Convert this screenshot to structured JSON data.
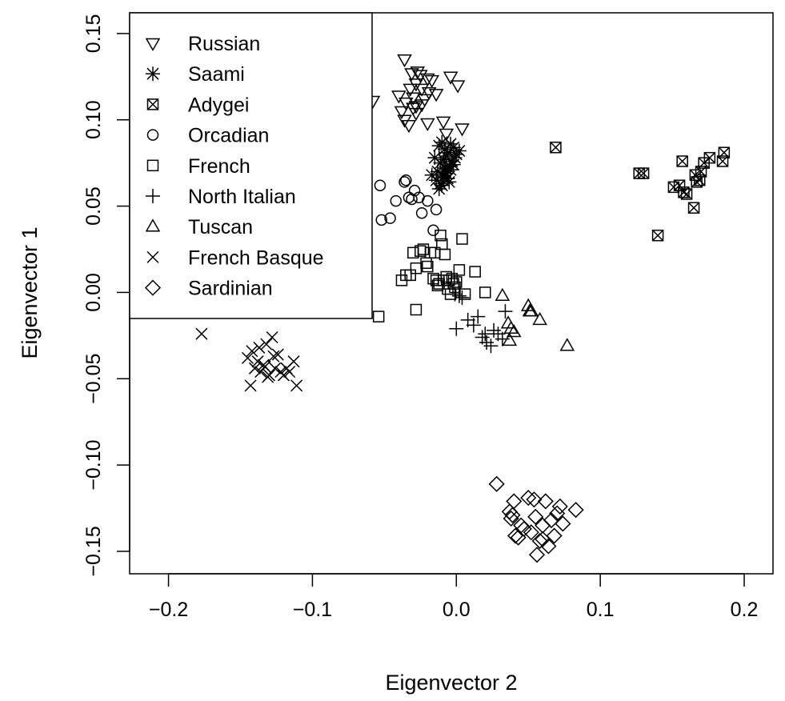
{
  "chart_data": {
    "type": "scatter",
    "title": "",
    "xlabel": "Eigenvector 2",
    "ylabel": "Eigenvector 1",
    "xlim": [
      -0.227,
      0.22
    ],
    "ylim": [
      -0.163,
      0.162
    ],
    "xticks": [
      -0.2,
      -0.1,
      0.0,
      0.1,
      0.2
    ],
    "xtick_labels": [
      "−0.2",
      "−0.1",
      "0.0",
      "0.1",
      "0.2"
    ],
    "yticks": [
      -0.15,
      -0.1,
      -0.05,
      0.0,
      0.05,
      0.1,
      0.15
    ],
    "ytick_labels": [
      "−0.15",
      "−0.10",
      "−0.05",
      "0.00",
      "0.05",
      "0.10",
      "0.15"
    ],
    "grid": false,
    "legend_position": "top-left",
    "series": [
      {
        "name": "Russian",
        "marker": "triangle-down",
        "x": [
          -0.036,
          -0.058,
          -0.04,
          -0.035,
          -0.038,
          -0.03,
          -0.028,
          -0.024,
          -0.022,
          -0.019,
          -0.032,
          -0.028,
          -0.02,
          -0.025,
          -0.031,
          -0.027,
          -0.017,
          -0.024,
          -0.033,
          -0.036,
          -0.02,
          -0.028,
          -0.03,
          -0.009,
          -0.004,
          0.001,
          0.004,
          -0.007,
          -0.014
        ],
        "y": [
          0.135,
          0.111,
          0.114,
          0.11,
          0.105,
          0.107,
          0.104,
          0.109,
          0.112,
          0.116,
          0.118,
          0.121,
          0.124,
          0.126,
          0.127,
          0.128,
          0.123,
          0.118,
          0.097,
          0.1,
          0.098,
          0.108,
          0.113,
          0.099,
          0.125,
          0.12,
          0.095,
          0.092,
          0.115
        ]
      },
      {
        "name": "Saami",
        "marker": "asterisk",
        "x": [
          -0.015,
          -0.012,
          -0.01,
          -0.008,
          -0.006,
          -0.004,
          -0.002,
          0.0,
          0.002,
          -0.011,
          -0.009,
          -0.007,
          -0.005,
          -0.003,
          -0.001,
          -0.013,
          -0.01,
          -0.008,
          -0.006,
          -0.004,
          -0.002,
          -0.017,
          -0.014,
          -0.011,
          -0.009,
          -0.007,
          -0.005,
          -0.012,
          -0.01,
          -0.008
        ],
        "y": [
          0.078,
          0.085,
          0.087,
          0.083,
          0.081,
          0.086,
          0.084,
          0.08,
          0.082,
          0.075,
          0.077,
          0.079,
          0.073,
          0.076,
          0.078,
          0.07,
          0.068,
          0.072,
          0.066,
          0.071,
          0.074,
          0.068,
          0.065,
          0.063,
          0.067,
          0.069,
          0.064,
          0.06,
          0.062,
          0.07
        ]
      },
      {
        "name": "Adygei",
        "marker": "boxed-x",
        "x": [
          0.069,
          0.127,
          0.13,
          0.14,
          0.151,
          0.155,
          0.157,
          0.158,
          0.16,
          0.165,
          0.166,
          0.167,
          0.169,
          0.17,
          0.172,
          0.176,
          0.185,
          0.186
        ],
        "y": [
          0.084,
          0.069,
          0.069,
          0.033,
          0.061,
          0.062,
          0.076,
          0.058,
          0.057,
          0.049,
          0.068,
          0.064,
          0.065,
          0.07,
          0.075,
          0.078,
          0.076,
          0.081
        ]
      },
      {
        "name": "Orcadian",
        "marker": "circle",
        "x": [
          -0.053,
          -0.046,
          -0.042,
          -0.036,
          -0.033,
          -0.031,
          -0.029,
          -0.026,
          -0.024,
          -0.02,
          -0.016,
          -0.014,
          -0.035,
          -0.052
        ],
        "y": [
          0.062,
          0.043,
          0.053,
          0.064,
          0.055,
          0.054,
          0.059,
          0.055,
          0.046,
          0.053,
          0.036,
          0.048,
          0.065,
          0.042
        ]
      },
      {
        "name": "French",
        "marker": "square",
        "x": [
          -0.054,
          -0.038,
          -0.035,
          -0.032,
          -0.03,
          -0.028,
          -0.025,
          -0.023,
          -0.021,
          -0.02,
          -0.018,
          -0.015,
          -0.014,
          -0.012,
          -0.011,
          -0.01,
          -0.008,
          -0.007,
          -0.006,
          -0.005,
          -0.004,
          -0.003,
          -0.002,
          -0.001,
          0.0,
          0.002,
          0.004,
          0.006,
          0.013,
          0.02,
          -0.016,
          -0.013,
          -0.009,
          -0.028
        ],
        "y": [
          -0.014,
          0.007,
          0.01,
          0.01,
          0.023,
          0.014,
          0.024,
          0.025,
          0.017,
          0.015,
          0.023,
          0.023,
          0.007,
          0.005,
          0.033,
          0.028,
          0.022,
          0.009,
          0.002,
          0.007,
          -0.001,
          0.008,
          0.005,
          0.003,
          0.006,
          0.013,
          0.031,
          -0.001,
          0.012,
          0.0,
          0.008,
          0.004,
          0.007,
          -0.01
        ]
      },
      {
        "name": "North Italian",
        "marker": "plus",
        "x": [
          -0.001,
          0.002,
          0.004,
          0.0,
          0.008,
          0.012,
          0.015,
          0.018,
          0.02,
          0.021,
          0.024,
          0.026,
          0.029,
          0.032,
          0.034
        ],
        "y": [
          -0.001,
          -0.002,
          -0.003,
          -0.021,
          -0.016,
          -0.019,
          -0.014,
          -0.026,
          -0.024,
          -0.029,
          -0.031,
          -0.022,
          -0.024,
          -0.027,
          -0.011
        ]
      },
      {
        "name": "Tuscan",
        "marker": "triangle-up",
        "x": [
          0.032,
          0.036,
          0.037,
          0.038,
          0.04,
          0.05,
          0.051,
          0.052,
          0.058,
          0.077
        ],
        "y": [
          -0.002,
          -0.018,
          -0.028,
          -0.021,
          -0.023,
          -0.008,
          -0.011,
          -0.011,
          -0.016,
          -0.031
        ]
      },
      {
        "name": "French Basque",
        "marker": "x",
        "x": [
          -0.177,
          -0.145,
          -0.142,
          -0.14,
          -0.138,
          -0.136,
          -0.134,
          -0.132,
          -0.13,
          -0.128,
          -0.126,
          -0.124,
          -0.122,
          -0.12,
          -0.118,
          -0.116,
          -0.113,
          -0.111,
          -0.133,
          -0.137,
          -0.143,
          -0.131,
          -0.127
        ],
        "y": [
          -0.024,
          -0.038,
          -0.034,
          -0.044,
          -0.04,
          -0.046,
          -0.042,
          -0.03,
          -0.048,
          -0.026,
          -0.044,
          -0.036,
          -0.046,
          -0.048,
          -0.044,
          -0.046,
          -0.04,
          -0.054,
          -0.043,
          -0.032,
          -0.054,
          -0.049,
          -0.037
        ]
      },
      {
        "name": "Sardinian",
        "marker": "diamond",
        "x": [
          0.028,
          0.037,
          0.038,
          0.039,
          0.04,
          0.041,
          0.043,
          0.045,
          0.047,
          0.05,
          0.052,
          0.054,
          0.056,
          0.058,
          0.06,
          0.062,
          0.064,
          0.066,
          0.068,
          0.07,
          0.072,
          0.074,
          0.083,
          0.06,
          0.055
        ],
        "y": [
          -0.111,
          -0.127,
          -0.131,
          -0.129,
          -0.121,
          -0.141,
          -0.142,
          -0.135,
          -0.137,
          -0.119,
          -0.139,
          -0.12,
          -0.152,
          -0.144,
          -0.143,
          -0.121,
          -0.147,
          -0.132,
          -0.141,
          -0.128,
          -0.124,
          -0.134,
          -0.126,
          -0.135,
          -0.13
        ]
      }
    ]
  }
}
